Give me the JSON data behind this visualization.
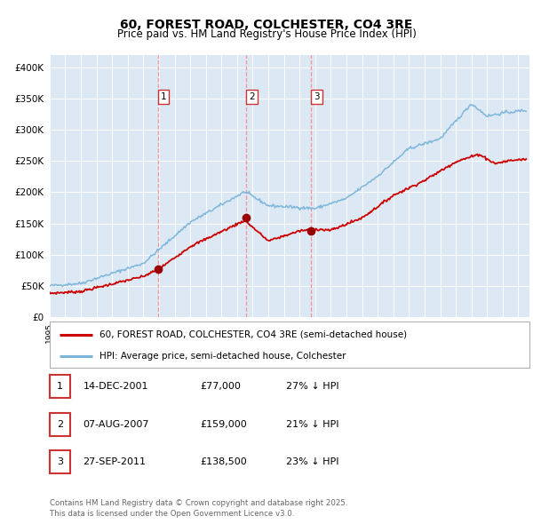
{
  "title": "60, FOREST ROAD, COLCHESTER, CO4 3RE",
  "subtitle": "Price paid vs. HM Land Registry's House Price Index (HPI)",
  "bg_color": "#dce9f5",
  "hpi_color": "#7ab4d8",
  "price_color": "#cc0000",
  "sale_marker_color": "#990000",
  "vline_color": "#ff8888",
  "legend_label_red": "60, FOREST ROAD, COLCHESTER, CO4 3RE (semi-detached house)",
  "legend_label_blue": "HPI: Average price, semi-detached house, Colchester",
  "sale1_date": "14-DEC-2001",
  "sale1_year": 2001.95,
  "sale1_price": 77000,
  "sale1_pct": "27% ↓ HPI",
  "sale2_date": "07-AUG-2007",
  "sale2_year": 2007.6,
  "sale2_price": 159000,
  "sale2_pct": "21% ↓ HPI",
  "sale3_date": "27-SEP-2011",
  "sale3_year": 2011.75,
  "sale3_price": 138500,
  "sale3_pct": "23% ↓ HPI",
  "footer": "Contains HM Land Registry data © Crown copyright and database right 2025.\nThis data is licensed under the Open Government Licence v3.0.",
  "ylim": [
    0,
    420000
  ],
  "xlim_start": 1995.0,
  "xlim_end": 2025.7
}
